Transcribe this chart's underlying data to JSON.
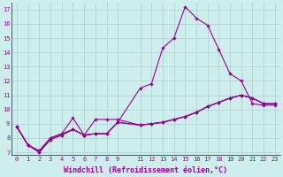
{
  "xlabel": "Windchill (Refroidissement éolien,°C)",
  "xlim": [
    -0.5,
    23.5
  ],
  "ylim": [
    6.8,
    17.5
  ],
  "xticks": [
    0,
    1,
    2,
    3,
    4,
    5,
    6,
    7,
    8,
    9,
    11,
    12,
    13,
    14,
    15,
    16,
    17,
    18,
    19,
    20,
    21,
    22,
    23
  ],
  "yticks": [
    7,
    8,
    9,
    10,
    11,
    12,
    13,
    14,
    15,
    16,
    17
  ],
  "bg_color": "#ceeeed",
  "grid_color": "#aacfce",
  "line_color": "#990099",
  "lines": [
    {
      "x": [
        0,
        1,
        2,
        3,
        4,
        5,
        6,
        7,
        8,
        9,
        11,
        12,
        13,
        14,
        15,
        16,
        17,
        18,
        19,
        20,
        21,
        22,
        23
      ],
      "y": [
        8.8,
        7.5,
        7.0,
        7.9,
        8.2,
        8.6,
        8.2,
        8.3,
        8.3,
        9.1,
        11.5,
        11.8,
        14.3,
        15.0,
        17.2,
        16.4,
        15.9,
        14.2,
        12.5,
        12.0,
        10.4,
        10.3,
        10.3
      ]
    },
    {
      "x": [
        0,
        1,
        2,
        3,
        4,
        5,
        6,
        7,
        8,
        9,
        11,
        12,
        13,
        14,
        15,
        16,
        17,
        18,
        19,
        20,
        21,
        22,
        23
      ],
      "y": [
        8.8,
        7.5,
        7.0,
        7.9,
        8.2,
        8.6,
        8.2,
        9.3,
        9.3,
        9.3,
        8.9,
        9.0,
        9.1,
        9.3,
        9.5,
        9.8,
        10.2,
        10.5,
        10.8,
        11.0,
        10.8,
        10.4,
        10.4
      ]
    },
    {
      "x": [
        0,
        1,
        2,
        3,
        4,
        5,
        6,
        7,
        8,
        9,
        11,
        12,
        13,
        14,
        15,
        16,
        17,
        18,
        19,
        20,
        21,
        22,
        23
      ],
      "y": [
        8.8,
        7.5,
        7.1,
        8.0,
        8.3,
        9.4,
        8.2,
        8.3,
        8.3,
        9.1,
        8.9,
        9.0,
        9.1,
        9.3,
        9.5,
        9.8,
        10.2,
        10.5,
        10.8,
        11.0,
        10.8,
        10.4,
        10.4
      ]
    },
    {
      "x": [
        0,
        1,
        2,
        3,
        4,
        5,
        6,
        7,
        8,
        9,
        11,
        12,
        13,
        14,
        15,
        16,
        17,
        18,
        19,
        20,
        21,
        22,
        23
      ],
      "y": [
        8.8,
        7.5,
        7.1,
        8.0,
        8.3,
        8.6,
        8.2,
        8.3,
        8.3,
        9.1,
        8.9,
        9.0,
        9.1,
        9.3,
        9.5,
        9.8,
        10.2,
        10.5,
        10.8,
        11.0,
        10.8,
        10.4,
        10.4
      ]
    }
  ],
  "line_width": 0.8,
  "marker": "D",
  "marker_size": 1.8,
  "tick_fontsize": 5.0,
  "label_fontsize": 6.0
}
